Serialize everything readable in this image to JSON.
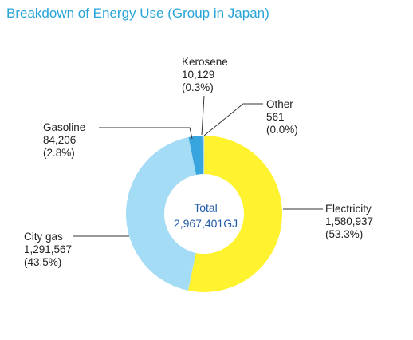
{
  "chart_data": {
    "type": "pie",
    "title": "Breakdown of Energy Use (Group in Japan)",
    "center_label": "Total",
    "center_value": "2,967,401GJ",
    "slices": [
      {
        "name": "Electricity",
        "value": 1580937,
        "value_text": "1,580,937",
        "percent_text": "(53.3%)",
        "color": "#fff22e"
      },
      {
        "name": "City gas",
        "value": 1291567,
        "value_text": "1,291,567",
        "percent_text": "(43.5%)",
        "color": "#a4dcf6"
      },
      {
        "name": "Gasoline",
        "value": 84206,
        "value_text": "84,206",
        "percent_text": "(2.8%)",
        "color": "#39a5df"
      },
      {
        "name": "Kerosene",
        "value": 10129,
        "value_text": "10,129",
        "percent_text": "(0.3%)",
        "color": "#9fd3e8"
      },
      {
        "name": "Other",
        "value": 561,
        "value_text": "561",
        "percent_text": "(0.0%)",
        "color": "#d8ecf4"
      }
    ]
  }
}
